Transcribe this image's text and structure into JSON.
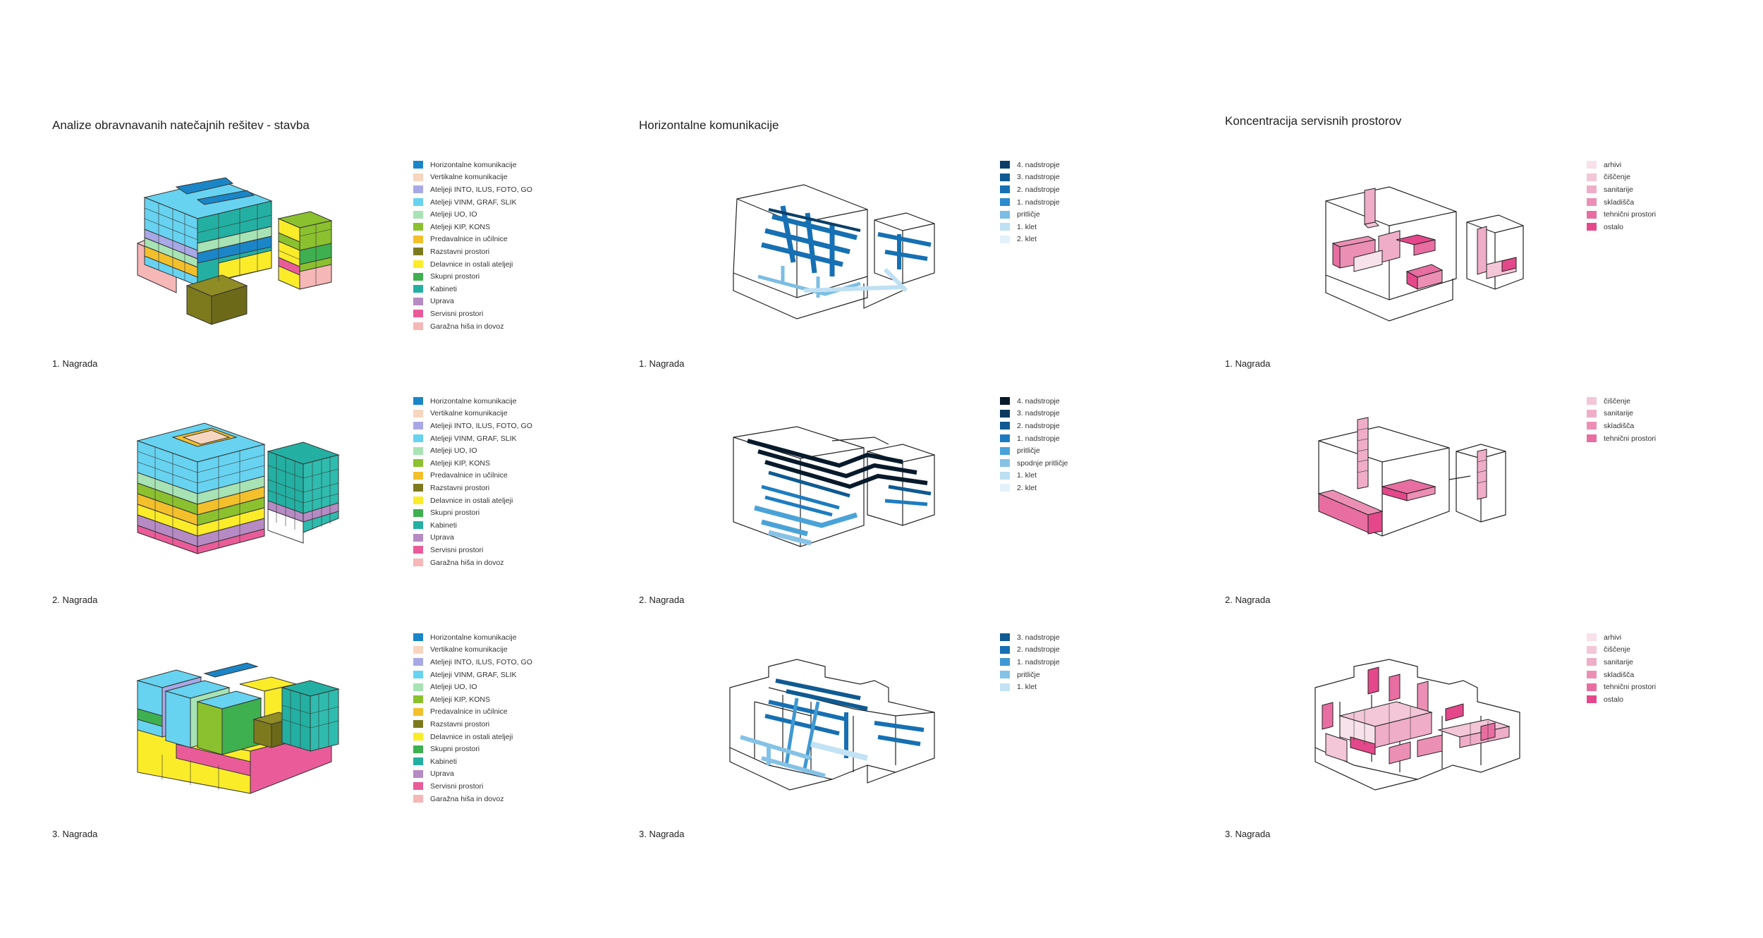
{
  "columns": [
    {
      "title": "Analize obravnavanih natečajnih rešitev - stavba",
      "rows": [
        {
          "award": "1. Nagrada",
          "legend": [
            {
              "label": "Horizontalne komunikacije",
              "color": "#1a86c8"
            },
            {
              "label": "Vertikalne komunikacije",
              "color": "#f7d6bf"
            },
            {
              "label": "Ateljeji INTO, ILUS, FOTO, GO",
              "color": "#a9a8e6"
            },
            {
              "label": "Ateljeji VINM, GRAF, SLIK",
              "color": "#67d3f0"
            },
            {
              "label": "Ateljeji UO, IO",
              "color": "#a7e3b4"
            },
            {
              "label": "Ateljeji KIP, KONS",
              "color": "#8bc12e"
            },
            {
              "label": "Predavalnice in učilnice",
              "color": "#f3c02b"
            },
            {
              "label": "Razstavni prostori",
              "color": "#7d7a1e"
            },
            {
              "label": "Delavnice in ostali ateljeji",
              "color": "#fbec2a"
            },
            {
              "label": "Skupni prostori",
              "color": "#3fb04f"
            },
            {
              "label": "Kabineti",
              "color": "#23b0a2"
            },
            {
              "label": "Uprava",
              "color": "#b68bc4"
            },
            {
              "label": "Servisni prostori",
              "color": "#ea5c99"
            },
            {
              "label": "Garažna hiša in dovoz",
              "color": "#f6b7b7"
            }
          ]
        },
        {
          "award": "2. Nagrada",
          "legend": [
            {
              "label": "Horizontalne komunikacije",
              "color": "#1a86c8"
            },
            {
              "label": "Vertikalne komunikacije",
              "color": "#f7d6bf"
            },
            {
              "label": "Ateljeji INTO, ILUS, FOTO, GO",
              "color": "#a9a8e6"
            },
            {
              "label": "Ateljeji VINM, GRAF, SLIK",
              "color": "#67d3f0"
            },
            {
              "label": "Ateljeji UO, IO",
              "color": "#a7e3b4"
            },
            {
              "label": "Ateljeji KIP, KONS",
              "color": "#8bc12e"
            },
            {
              "label": "Predavalnice in učilnice",
              "color": "#f3c02b"
            },
            {
              "label": "Razstavni prostori",
              "color": "#7d7a1e"
            },
            {
              "label": "Delavnice in ostali ateljeji",
              "color": "#fbec2a"
            },
            {
              "label": "Skupni prostori",
              "color": "#3fb04f"
            },
            {
              "label": "Kabineti",
              "color": "#23b0a2"
            },
            {
              "label": "Uprava",
              "color": "#b68bc4"
            },
            {
              "label": "Servisni prostori",
              "color": "#ea5c99"
            },
            {
              "label": "Garažna hiša in dovoz",
              "color": "#f6b7b7"
            }
          ]
        },
        {
          "award": "3. Nagrada",
          "legend": [
            {
              "label": "Horizontalne komunikacije",
              "color": "#1a86c8"
            },
            {
              "label": "Vertikalne komunikacije",
              "color": "#f7d6bf"
            },
            {
              "label": "Ateljeji INTO, ILUS, FOTO, GO",
              "color": "#a9a8e6"
            },
            {
              "label": "Ateljeji VINM, GRAF, SLIK",
              "color": "#67d3f0"
            },
            {
              "label": "Ateljeji UO, IO",
              "color": "#a7e3b4"
            },
            {
              "label": "Ateljeji KIP, KONS",
              "color": "#8bc12e"
            },
            {
              "label": "Predavalnice in učilnice",
              "color": "#f3c02b"
            },
            {
              "label": "Razstavni prostori",
              "color": "#7d7a1e"
            },
            {
              "label": "Delavnice in ostali ateljeji",
              "color": "#fbec2a"
            },
            {
              "label": "Skupni prostori",
              "color": "#3fb04f"
            },
            {
              "label": "Kabineti",
              "color": "#23b0a2"
            },
            {
              "label": "Uprava",
              "color": "#b68bc4"
            },
            {
              "label": "Servisni prostori",
              "color": "#ea5c99"
            },
            {
              "label": "Garažna hiša in dovoz",
              "color": "#f6b7b7"
            }
          ]
        }
      ]
    },
    {
      "title": "Horizontalne komunikacije",
      "rows": [
        {
          "award": "1. Nagrada",
          "legend": [
            {
              "label": "4. nadstropje",
              "color": "#0b3f67"
            },
            {
              "label": "3. nadstropje",
              "color": "#0f5a92"
            },
            {
              "label": "2. nadstropje",
              "color": "#1670b3"
            },
            {
              "label": "1. nadstropje",
              "color": "#2d8ccd"
            },
            {
              "label": "pritličje",
              "color": "#7cbde3"
            },
            {
              "label": "1. klet",
              "color": "#bfe0f2"
            },
            {
              "label": "2. klet",
              "color": "#e3f1fa"
            }
          ]
        },
        {
          "award": "2. Nagrada",
          "legend": [
            {
              "label": "4. nadstropje",
              "color": "#071a2b"
            },
            {
              "label": "3. nadstropje",
              "color": "#0c3a5f"
            },
            {
              "label": "2. nadstropje",
              "color": "#0f5a92"
            },
            {
              "label": "1. nadstropje",
              "color": "#1d7cc0"
            },
            {
              "label": "pritličje",
              "color": "#4aa3d8"
            },
            {
              "label": "spodnje pritličje",
              "color": "#86c2e6"
            },
            {
              "label": "1. klet",
              "color": "#bcdff2"
            },
            {
              "label": "2. klet",
              "color": "#e3f1fa"
            }
          ]
        },
        {
          "award": "3. Nagrada",
          "legend": [
            {
              "label": "3. nadstropje",
              "color": "#0f5a92"
            },
            {
              "label": "2. nadstropje",
              "color": "#1670b3"
            },
            {
              "label": "1. nadstropje",
              "color": "#3f98d3"
            },
            {
              "label": "pritličje",
              "color": "#84c2e6"
            },
            {
              "label": "1. klet",
              "color": "#c3e2f3"
            }
          ]
        }
      ]
    },
    {
      "title": "Koncentracija servisnih prostorov",
      "rows": [
        {
          "award": "1. Nagrada",
          "legend": [
            {
              "label": "arhivi",
              "color": "#f7e1ea"
            },
            {
              "label": "čiščenje",
              "color": "#f3c6d8"
            },
            {
              "label": "sanitarije",
              "color": "#efadc8"
            },
            {
              "label": "skladišča",
              "color": "#ec8fb5"
            },
            {
              "label": "tehnični prostori",
              "color": "#e86ea2"
            },
            {
              "label": "ostalo",
              "color": "#e4488a"
            }
          ]
        },
        {
          "award": "2. Nagrada",
          "legend": [
            {
              "label": "čiščenje",
              "color": "#f3c6d8"
            },
            {
              "label": "sanitarije",
              "color": "#efadc8"
            },
            {
              "label": "skladišča",
              "color": "#ec8fb5"
            },
            {
              "label": "tehnični prostori",
              "color": "#e86ea2"
            }
          ]
        },
        {
          "award": "3. Nagrada",
          "legend": [
            {
              "label": "arhivi",
              "color": "#f7e1ea"
            },
            {
              "label": "čiščenje",
              "color": "#f3c6d8"
            },
            {
              "label": "sanitarije",
              "color": "#efadc8"
            },
            {
              "label": "skladišča",
              "color": "#ec8fb5"
            },
            {
              "label": "tehnični prostori",
              "color": "#e86ea2"
            },
            {
              "label": "ostalo",
              "color": "#e4488a"
            }
          ]
        }
      ]
    }
  ]
}
